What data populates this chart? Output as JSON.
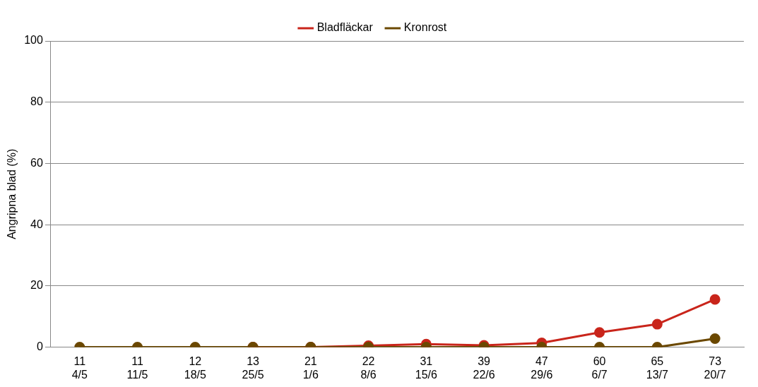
{
  "chart_data": {
    "type": "line",
    "ylabel": "Angripna blad (%)",
    "categories": [
      "11\n4/5",
      "11\n11/5",
      "12\n18/5",
      "13\n25/5",
      "21\n1/6",
      "22\n8/6",
      "31\n15/6",
      "39\n22/6",
      "47\n29/6",
      "60\n6/7",
      "65\n13/7",
      "73\n20/7"
    ],
    "series": [
      {
        "name": "Bladfläckar",
        "color": "#c9251b",
        "values": [
          null,
          null,
          null,
          0,
          0,
          0.5,
          1.0,
          0.6,
          1.4,
          4.8,
          7.5,
          15.6
        ]
      },
      {
        "name": "Kronrost",
        "color": "#6b4800",
        "values": [
          0,
          0,
          0,
          0,
          0,
          0,
          0,
          0,
          0,
          0,
          0,
          2.8
        ]
      }
    ],
    "ylim": [
      0,
      100
    ],
    "yticks": [
      0,
      20,
      40,
      60,
      80,
      100
    ],
    "grid": "y",
    "legend": "top",
    "marker": "circle",
    "line_style": "solid"
  }
}
